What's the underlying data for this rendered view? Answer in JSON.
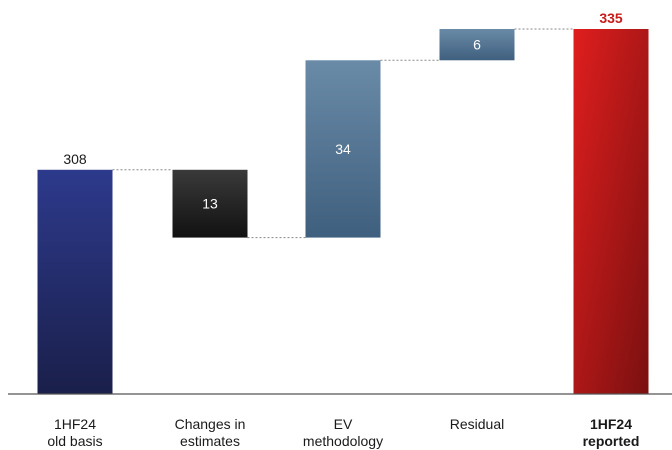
{
  "chart_data": {
    "type": "bar",
    "subtype": "waterfall",
    "categories": [
      [
        "1HF24",
        "old basis"
      ],
      [
        "Changes in",
        "estimates"
      ],
      [
        "EV",
        "methodology"
      ],
      [
        "Residual"
      ],
      [
        "1HF24",
        "reported"
      ]
    ],
    "steps": [
      {
        "kind": "total",
        "value": 308,
        "label": "308"
      },
      {
        "kind": "decrease",
        "value": -13,
        "label": "13"
      },
      {
        "kind": "increase",
        "value": 34,
        "label": "34"
      },
      {
        "kind": "increase",
        "value": 6,
        "label": "6"
      },
      {
        "kind": "total",
        "value": 335,
        "label": "335"
      }
    ],
    "ylim": [
      0,
      335
    ],
    "grid": false,
    "legend": "none",
    "colors": {
      "total_start_top": "#2d3a8c",
      "total_start_bottom": "#1a1f4a",
      "decrease_top": "#3a3a3a",
      "decrease_bottom": "#111111",
      "increase_top": "#6a8ba8",
      "increase_bottom": "#3f5f7e",
      "total_end_top": "#e01e1e",
      "total_end_bottom": "#7a1010",
      "highlight_label": "#c61c1c",
      "axis": "#555555",
      "connector": "#888888"
    }
  }
}
